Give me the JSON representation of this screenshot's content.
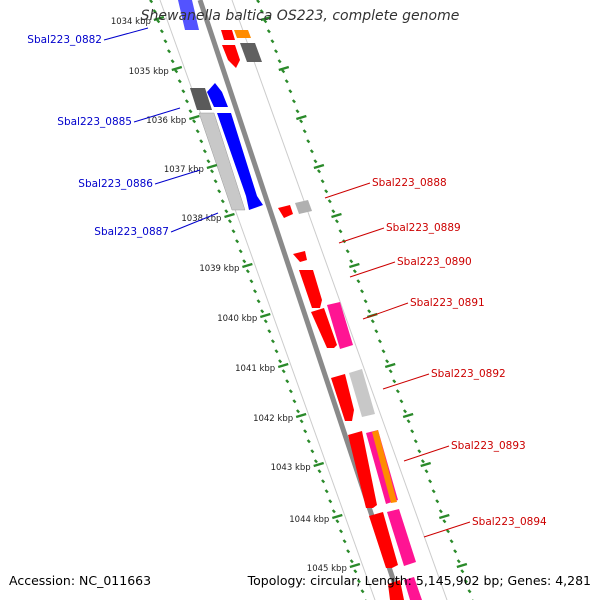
{
  "title": "Shewanella baltica OS223, complete genome",
  "footer": {
    "accession": "Accession: NC_011663",
    "summary": "Topology: circular; Length: 5,145,902 bp; Genes: 4,281"
  },
  "colors": {
    "forward_cds": "#ff0000",
    "reverse_cds": "#0000ff",
    "other_feature": "#ff1493",
    "orange_feature": "#ff8c00",
    "gray_feature": "#c0c0c0",
    "dark_feature": "#666666",
    "backbone": "#808080",
    "tick": "#228b22"
  },
  "scale_labels": [
    {
      "kbp": 1034,
      "text": "1034 kbp"
    },
    {
      "kbp": 1035,
      "text": "1035 kbp"
    },
    {
      "kbp": 1036,
      "text": "1036 kbp"
    },
    {
      "kbp": 1037,
      "text": "1037 kbp"
    },
    {
      "kbp": 1038,
      "text": "1038 kbp"
    },
    {
      "kbp": 1039,
      "text": "1039 kbp"
    },
    {
      "kbp": 1040,
      "text": "1040 kbp"
    },
    {
      "kbp": 1041,
      "text": "1041 kbp"
    },
    {
      "kbp": 1042,
      "text": "1042 kbp"
    },
    {
      "kbp": 1043,
      "text": "1043 kbp"
    },
    {
      "kbp": 1044,
      "text": "1044 kbp"
    },
    {
      "kbp": 1045,
      "text": "1045 kbp"
    }
  ],
  "gene_labels": [
    {
      "text": "Sbal223_0882",
      "strand": "reverse",
      "color": "#0000cc"
    },
    {
      "text": "Sbal223_0885",
      "strand": "reverse",
      "color": "#0000cc"
    },
    {
      "text": "Sbal223_0886",
      "strand": "reverse",
      "color": "#0000cc"
    },
    {
      "text": "Sbal223_0887",
      "strand": "reverse",
      "color": "#0000cc"
    },
    {
      "text": "Sbal223_0888",
      "strand": "forward",
      "color": "#cc0000"
    },
    {
      "text": "Sbal223_0889",
      "strand": "forward",
      "color": "#cc0000"
    },
    {
      "text": "Sbal223_0890",
      "strand": "forward",
      "color": "#cc0000"
    },
    {
      "text": "Sbal223_0891",
      "strand": "forward",
      "color": "#cc0000"
    },
    {
      "text": "Sbal223_0892",
      "strand": "forward",
      "color": "#cc0000"
    },
    {
      "text": "Sbal223_0893",
      "strand": "forward",
      "color": "#cc0000"
    },
    {
      "text": "Sbal223_0894",
      "strand": "forward",
      "color": "#cc0000"
    }
  ]
}
